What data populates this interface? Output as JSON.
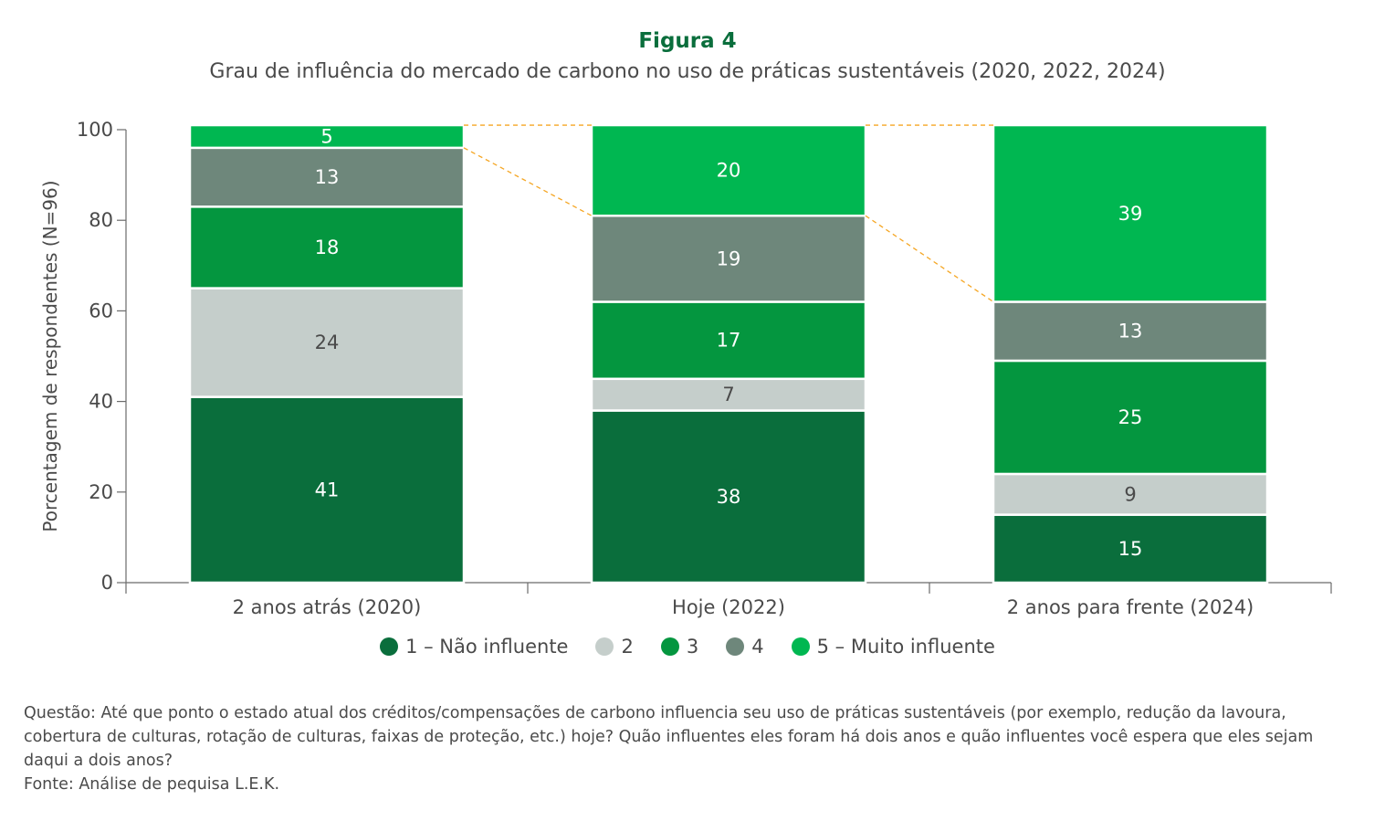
{
  "figure_label": "Figura 4",
  "title": "Grau de influência do mercado de carbono no uso de práticas sustentáveis (2020, 2022, 2024)",
  "chart_data": {
    "type": "bar",
    "stacked": true,
    "categories": [
      "2 anos atrás (2020)",
      "Hoje (2022)",
      "2 anos para frente (2024)"
    ],
    "series": [
      {
        "name": "1 – Não influente",
        "color": "#0a6e3c",
        "label_color": "#ffffff",
        "values": [
          41,
          38,
          15
        ]
      },
      {
        "name": "2",
        "color": "#c5cecb",
        "label_color": "#4a4a4a",
        "values": [
          24,
          7,
          9
        ]
      },
      {
        "name": "3",
        "color": "#04963f",
        "label_color": "#ffffff",
        "values": [
          18,
          17,
          25
        ]
      },
      {
        "name": "4",
        "color": "#6e877b",
        "label_color": "#ffffff",
        "values": [
          13,
          19,
          13
        ]
      },
      {
        "name": "5 – Muito influente",
        "color": "#00b751",
        "label_color": "#ffffff",
        "values": [
          5,
          20,
          39
        ]
      }
    ],
    "ylabel": "Porcentagem de respondentes (N=96)",
    "xlabel": "",
    "ylim": [
      0,
      100
    ],
    "yticks": [
      0,
      20,
      40,
      60,
      80,
      100
    ],
    "legend_position": "bottom",
    "connector_color": "#f5a623"
  },
  "notes": {
    "question": "Questão: Até que ponto o estado atual dos créditos/compensações de carbono influencia seu uso de práticas sustentáveis (por exemplo, redução da lavoura, cobertura de culturas, rotação de culturas, faixas de proteção, etc.) hoje? Quão influentes eles foram há dois anos e quão influentes você espera que eles sejam daqui a dois anos?",
    "source": "Fonte: Análise de pequisa L.E.K."
  }
}
